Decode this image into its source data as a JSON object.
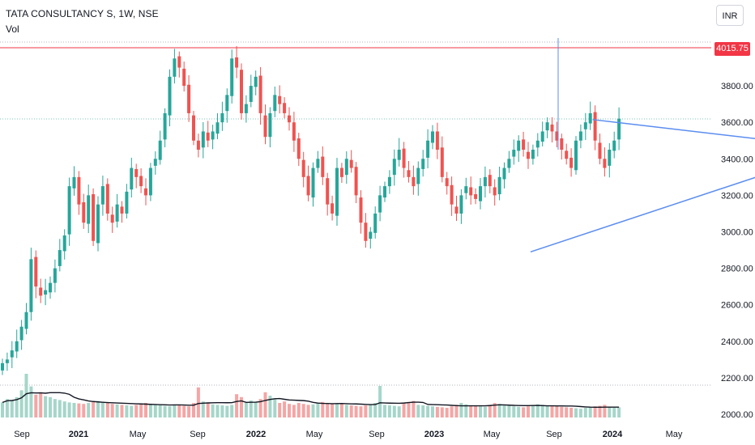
{
  "header": {
    "symbol": "TATA CONSULTANCY S, 1W, NSE",
    "volume_label": "Vol"
  },
  "currency_button": "INR",
  "price_badge": "4015.75",
  "colors": {
    "up": "#26a69a",
    "down": "#ef5350",
    "vol_up": "#a5d6c9",
    "vol_down": "#f5a5a5",
    "trendline": "#5b8def",
    "level_line": "#f23645",
    "axis_text": "#131722"
  },
  "chart_data": {
    "type": "candlestick",
    "interval": "1W",
    "y_axis": {
      "ticks": [
        "4015.75",
        "3800.00",
        "3600.00",
        "3400.00",
        "3200.00",
        "3000.00",
        "2800.00",
        "2600.00",
        "2400.00",
        "2200.00",
        "2000.00"
      ],
      "tick_values": [
        3800,
        3600,
        3400,
        3200,
        3000,
        2800,
        2600,
        2400,
        2200,
        2000
      ],
      "range": [
        1980,
        4210
      ],
      "position": "right"
    },
    "x_axis": {
      "labels": [
        "Sep",
        "2021",
        "May",
        "Sep",
        "2022",
        "May",
        "Sep",
        "2023",
        "May",
        "Sep",
        "2024",
        "May"
      ],
      "bold_labels": [
        "2021",
        "2022",
        "2023",
        "2024"
      ]
    },
    "horizontal_level": 4015.75,
    "trendlines": [
      {
        "name": "upper",
        "from": [
          123.5,
          3615
        ],
        "to": [
          179,
          3445
        ]
      },
      {
        "name": "lower",
        "from": [
          110.5,
          2890
        ],
        "to": [
          190,
          3580
        ]
      }
    ],
    "volume_ma": true,
    "price_path": [
      2280,
      2300,
      2350,
      2400,
      2480,
      2560,
      2850,
      2700,
      2650,
      2680,
      2720,
      2800,
      2900,
      2980,
      3250,
      3300,
      3150,
      3050,
      3200,
      2950,
      3150,
      3250,
      3100,
      3050,
      3150,
      3100,
      3220,
      3350,
      3300,
      3250,
      3200,
      3350,
      3400,
      3500,
      3650,
      3850,
      3950,
      3900,
      3800,
      3650,
      3500,
      3450,
      3550,
      3500,
      3550,
      3600,
      3650,
      3750,
      3950,
      3900,
      3650,
      3700,
      3800,
      3850,
      3650,
      3520,
      3650,
      3750,
      3700,
      3650,
      3600,
      3500,
      3400,
      3300,
      3200,
      3350,
      3400,
      3300,
      3150,
      3100,
      3350,
      3300,
      3400,
      3350,
      3200,
      3050,
      2950,
      3000,
      3100,
      3200,
      3250,
      3300,
      3400,
      3450,
      3350,
      3300,
      3250,
      3350,
      3400,
      3500,
      3550,
      3450,
      3300,
      3250,
      3150,
      3100,
      3200,
      3250,
      3200,
      3180,
      3250,
      3300,
      3250,
      3200,
      3300,
      3350,
      3400,
      3450,
      3500,
      3450,
      3400,
      3450,
      3500,
      3550,
      3600,
      3550,
      3500,
      3450,
      3400,
      3350,
      3500,
      3550,
      3600,
      3650,
      3500,
      3400,
      3350,
      3450,
      3500,
      3620
    ],
    "volume_values": [
      310,
      380,
      360,
      420,
      560,
      900,
      640,
      470,
      520,
      440,
      420,
      380,
      360,
      330,
      310,
      300,
      290,
      280,
      300,
      320,
      340,
      310,
      300,
      280,
      270,
      260,
      250,
      240,
      260,
      280,
      300,
      270,
      260,
      250,
      240,
      230,
      260,
      250,
      240,
      230,
      300,
      620,
      330,
      300,
      270,
      260,
      250,
      240,
      260,
      480,
      420,
      300,
      350,
      320,
      380,
      520,
      450,
      380,
      300,
      330,
      280,
      260,
      300,
      280,
      260,
      270,
      300,
      320,
      280,
      290,
      300,
      280,
      260,
      250,
      240,
      230,
      250,
      270,
      300,
      650,
      260,
      250,
      240,
      230,
      300,
      320,
      340,
      260,
      250,
      240,
      230,
      220,
      210,
      200,
      230,
      260,
      300,
      270,
      250,
      240,
      230,
      220,
      260,
      300,
      280,
      250,
      240,
      230,
      220,
      210,
      230,
      250,
      270,
      260,
      250,
      240,
      230,
      220,
      210,
      200,
      190,
      180,
      200,
      210,
      230,
      240,
      260,
      220,
      200,
      210
    ]
  }
}
